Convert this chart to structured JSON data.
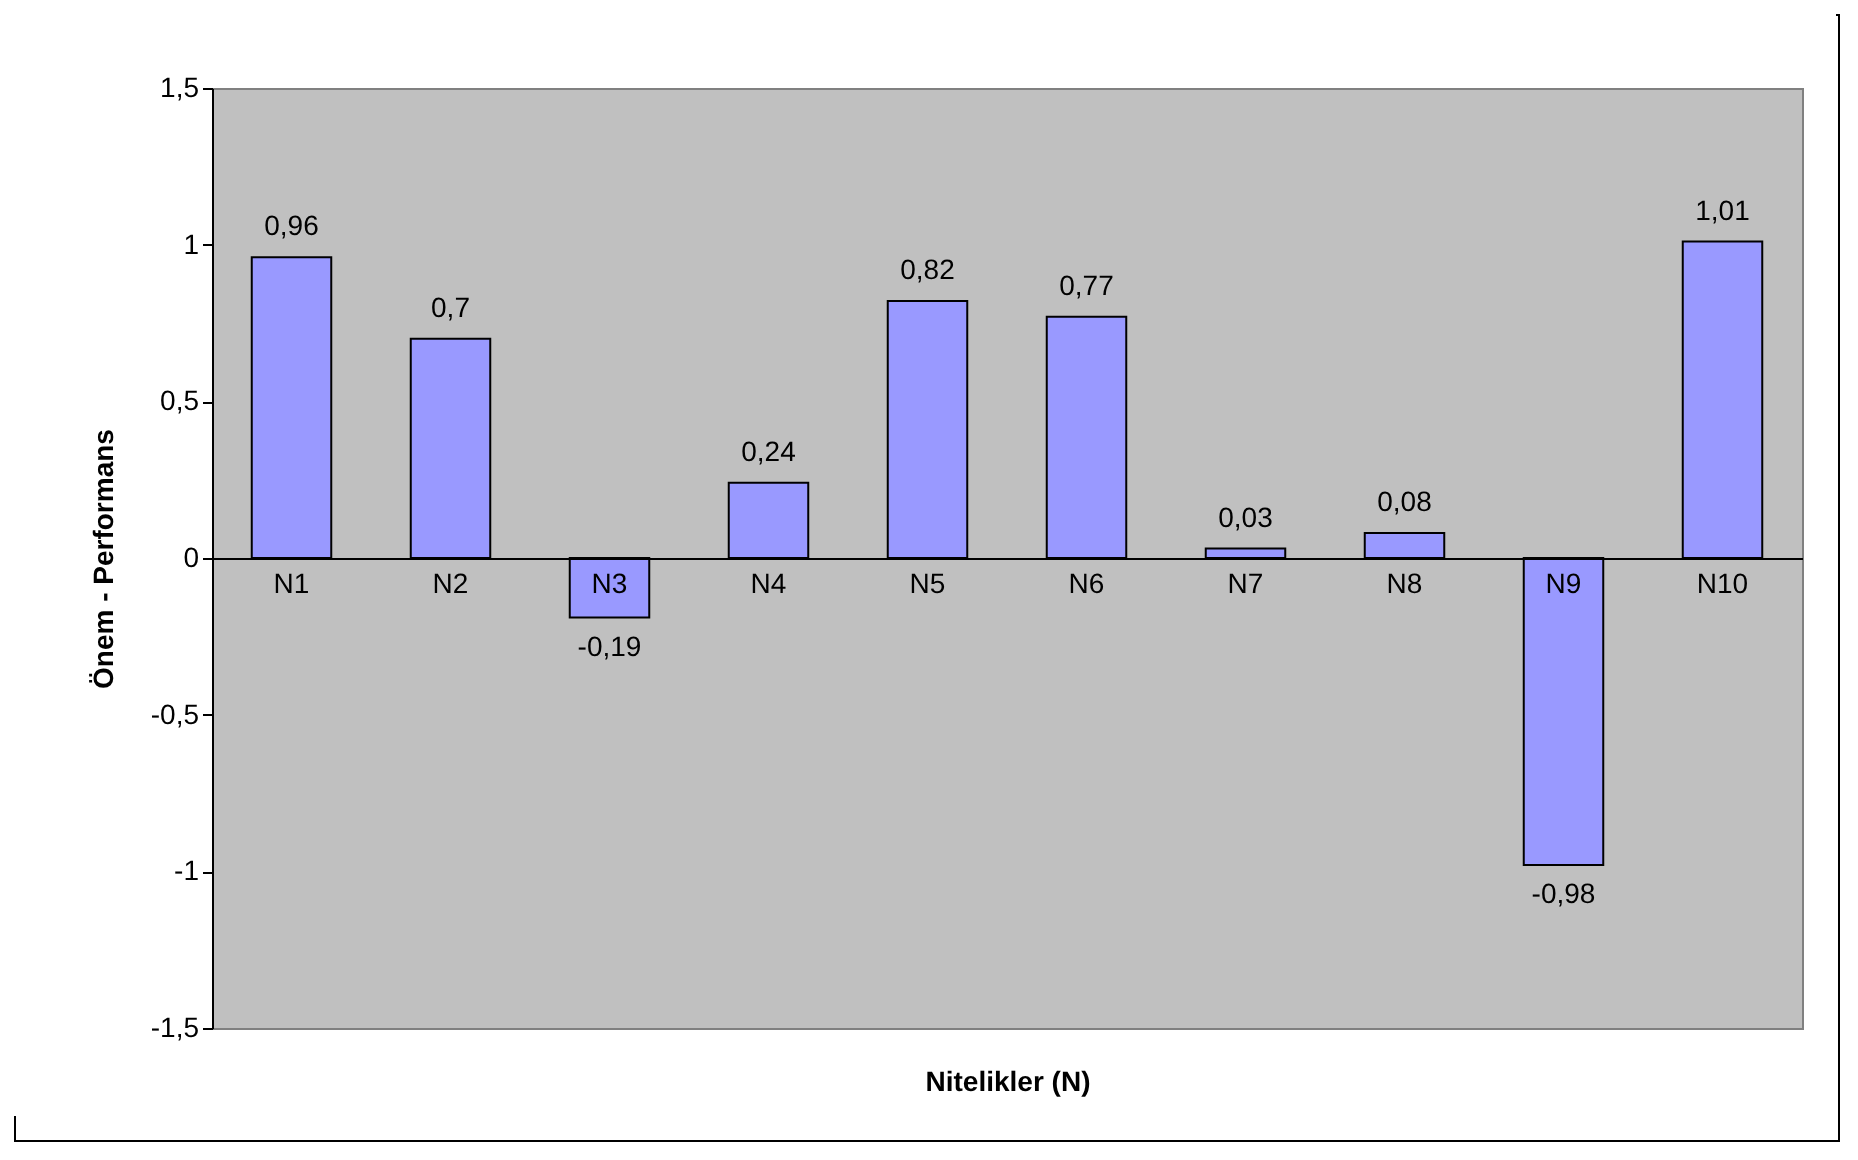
{
  "chart_data": {
    "type": "bar",
    "xlabel": "Nitelikler (N)",
    "ylabel": "Önem - Performans",
    "categories": [
      "N1",
      "N2",
      "N3",
      "N4",
      "N5",
      "N6",
      "N7",
      "N8",
      "N9",
      "N10"
    ],
    "values": [
      0.96,
      0.7,
      -0.19,
      0.24,
      0.82,
      0.77,
      0.03,
      0.08,
      -0.98,
      1.01
    ],
    "value_labels": [
      "0,96",
      "0,7",
      "-0,19",
      "0,24",
      "0,82",
      "0,77",
      "0,03",
      "0,08",
      "-0,98",
      "1,01"
    ],
    "color": "#9999ff",
    "ylim": [
      -1.5,
      1.5
    ],
    "yticks": [
      {
        "value": -1.5,
        "label": "-1,5"
      },
      -1,
      {
        "value": -0.5,
        "label": "-0,5"
      },
      0,
      {
        "value": 0.5,
        "label": "0,5"
      },
      1,
      {
        "value": 1.5,
        "label": "1,5"
      }
    ],
    "grid": false
  }
}
